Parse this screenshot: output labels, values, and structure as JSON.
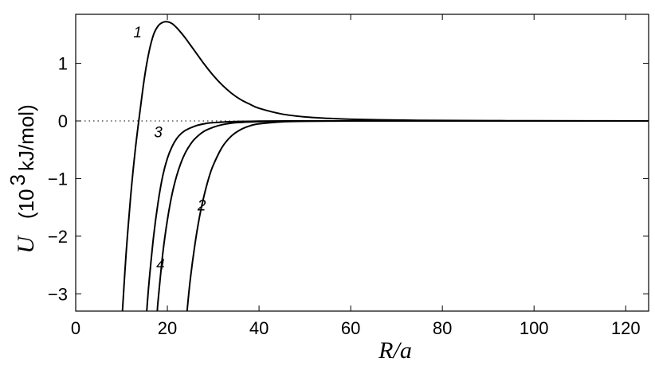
{
  "chart_data": {
    "type": "line",
    "xlabel": "R/a",
    "ylabel": {
      "symbol": "U",
      "unit_open": "(10",
      "unit_exp": "3",
      "unit_rest": " kJ/mol)"
    },
    "xlim": [
      0,
      125
    ],
    "ylim": [
      -3.3,
      1.85
    ],
    "xticks": [
      0,
      20,
      40,
      60,
      80,
      100,
      120
    ],
    "yticks": [
      -3,
      -2,
      -1,
      0,
      1
    ],
    "ytick_labels": [
      "−3",
      "−2",
      "−1",
      "0",
      "1"
    ],
    "zero_line": "dotted",
    "grid": false,
    "series": [
      {
        "name": "1",
        "x": [
          10.2,
          11,
          12,
          13,
          14,
          15,
          16,
          17,
          18,
          19,
          20,
          21,
          22,
          23,
          24,
          25,
          26,
          28,
          30,
          32,
          34,
          36,
          38,
          40,
          45,
          50,
          55,
          60,
          70,
          80,
          90,
          100,
          125
        ],
        "y": [
          -3.3,
          -2.3,
          -1.3,
          -0.5,
          0.15,
          0.75,
          1.2,
          1.5,
          1.65,
          1.71,
          1.72,
          1.69,
          1.62,
          1.53,
          1.43,
          1.32,
          1.21,
          0.99,
          0.79,
          0.62,
          0.48,
          0.37,
          0.29,
          0.22,
          0.12,
          0.07,
          0.045,
          0.03,
          0.015,
          0.008,
          0.005,
          0.003,
          0.0
        ]
      },
      {
        "name": "2",
        "x": [
          24.3,
          25,
          26,
          27,
          28,
          29,
          30,
          32,
          34,
          36,
          38,
          40,
          45,
          50,
          55,
          60,
          80,
          125
        ],
        "y": [
          -3.3,
          -2.75,
          -2.15,
          -1.67,
          -1.3,
          -1.0,
          -0.77,
          -0.45,
          -0.26,
          -0.15,
          -0.085,
          -0.05,
          -0.015,
          -0.005,
          -0.002,
          0.0,
          0.0,
          0.0
        ]
      },
      {
        "name": "3",
        "x": [
          15.5,
          16,
          17,
          18,
          19,
          20,
          21,
          22,
          23,
          24,
          26,
          28,
          30,
          35,
          40,
          50,
          60,
          125
        ],
        "y": [
          -3.3,
          -2.8,
          -2.0,
          -1.4,
          -0.95,
          -0.65,
          -0.45,
          -0.31,
          -0.22,
          -0.16,
          -0.09,
          -0.05,
          -0.03,
          -0.01,
          -0.004,
          0.0,
          0.0,
          0.0
        ]
      },
      {
        "name": "4",
        "x": [
          17.8,
          18,
          19,
          20,
          21,
          22,
          23,
          24,
          25,
          26,
          28,
          30,
          32,
          35,
          40,
          45,
          50,
          60,
          125
        ],
        "y": [
          -3.3,
          -3.1,
          -2.3,
          -1.72,
          -1.28,
          -0.96,
          -0.72,
          -0.54,
          -0.41,
          -0.31,
          -0.18,
          -0.11,
          -0.065,
          -0.03,
          -0.012,
          -0.005,
          -0.002,
          0.0,
          0.0
        ]
      }
    ],
    "curve_label_positions": [
      {
        "label": "1",
        "x": 13.5,
        "y": 1.45
      },
      {
        "label": "2",
        "x": 27.5,
        "y": -1.55
      },
      {
        "label": "3",
        "x": 18.0,
        "y": -0.28
      },
      {
        "label": "4",
        "x": 18.5,
        "y": -2.58
      }
    ]
  }
}
